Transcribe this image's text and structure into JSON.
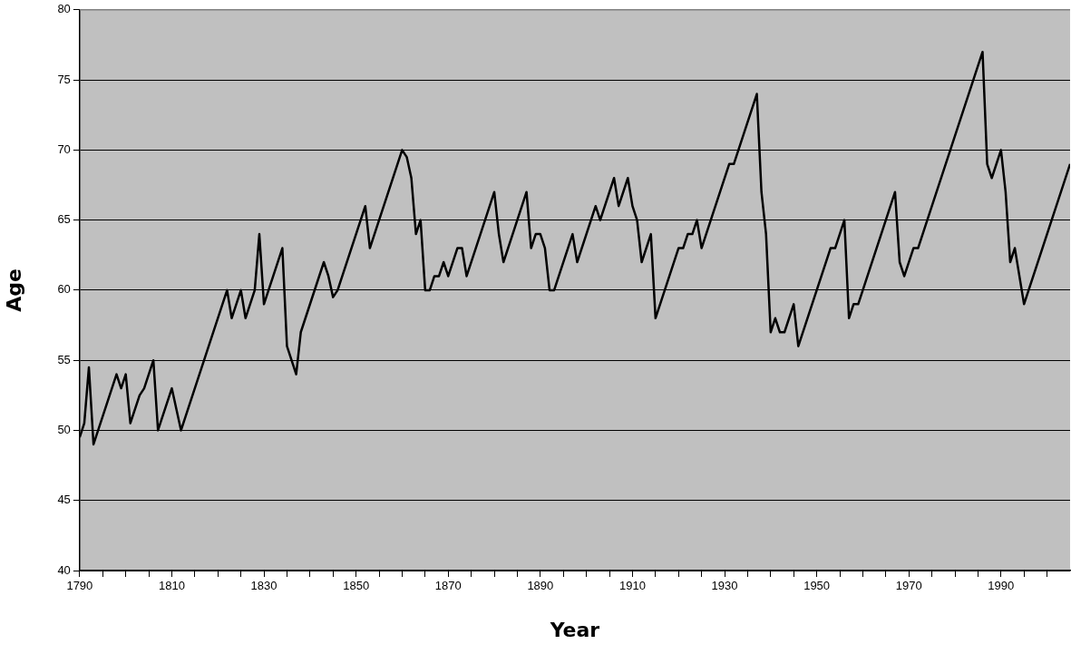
{
  "chart_data": {
    "type": "line",
    "xlabel": "Year",
    "ylabel": "Age",
    "xlim": [
      1790,
      2005
    ],
    "ylim": [
      40,
      80
    ],
    "xticks": [
      1790,
      {
        "value": 1795,
        "label": null
      },
      {
        "value": 1800,
        "label": null
      },
      {
        "value": 1805,
        "label": null
      },
      1810,
      {
        "value": 1815,
        "label": null
      },
      {
        "value": 1820,
        "label": null
      },
      {
        "value": 1825,
        "label": null
      },
      1830,
      {
        "value": 1835,
        "label": null
      },
      {
        "value": 1840,
        "label": null
      },
      {
        "value": 1845,
        "label": null
      },
      1850,
      {
        "value": 1855,
        "label": null
      },
      {
        "value": 1860,
        "label": null
      },
      {
        "value": 1865,
        "label": null
      },
      1870,
      {
        "value": 1875,
        "label": null
      },
      {
        "value": 1880,
        "label": null
      },
      {
        "value": 1885,
        "label": null
      },
      1890,
      {
        "value": 1895,
        "label": null
      },
      {
        "value": 1900,
        "label": null
      },
      {
        "value": 1905,
        "label": null
      },
      1910,
      {
        "value": 1915,
        "label": null
      },
      {
        "value": 1920,
        "label": null
      },
      {
        "value": 1925,
        "label": null
      },
      1930,
      {
        "value": 1935,
        "label": null
      },
      {
        "value": 1940,
        "label": null
      },
      {
        "value": 1945,
        "label": null
      },
      1950,
      {
        "value": 1955,
        "label": null
      },
      {
        "value": 1960,
        "label": null
      },
      {
        "value": 1965,
        "label": null
      },
      1970,
      {
        "value": 1975,
        "label": null
      },
      {
        "value": 1980,
        "label": null
      },
      {
        "value": 1985,
        "label": null
      },
      1990,
      {
        "value": 1995,
        "label": null
      },
      {
        "value": 2000,
        "label": null
      }
    ],
    "yticks": [
      40,
      45,
      50,
      55,
      60,
      65,
      70,
      75,
      80
    ],
    "grid": "y",
    "legend": false,
    "marker": "none",
    "line_style": "solid",
    "series": [
      {
        "color": "#000000",
        "x": [
          1790,
          1791,
          1792,
          1793,
          1798,
          1799,
          1800,
          1801,
          1803,
          1804,
          1806,
          1807,
          1810,
          1812,
          1822,
          1823,
          1825,
          1826,
          1828,
          1829,
          1830,
          1834,
          1835,
          1837,
          1838,
          1843,
          1844,
          1845,
          1846,
          1852,
          1853,
          1860,
          1861,
          1862,
          1863,
          1864,
          1865,
          1866,
          1867,
          1868,
          1869,
          1870,
          1872,
          1873,
          1874,
          1880,
          1881,
          1882,
          1887,
          1888,
          1889,
          1890,
          1891,
          1892,
          1893,
          1897,
          1898,
          1902,
          1903,
          1906,
          1907,
          1909,
          1910,
          1911,
          1912,
          1914,
          1915,
          1920,
          1921,
          1922,
          1923,
          1924,
          1925,
          1931,
          1932,
          1937,
          1938,
          1939,
          1940,
          1941,
          1942,
          1943,
          1945,
          1946,
          1953,
          1954,
          1956,
          1957,
          1958,
          1959,
          1967,
          1968,
          1969,
          1971,
          1972,
          1986,
          1987,
          1988,
          1990,
          1991,
          1992,
          1993,
          1995,
          2005
        ],
        "values": [
          49.5,
          50.5,
          54.5,
          49,
          54,
          53,
          54,
          50.5,
          52.5,
          53,
          55,
          50,
          53,
          50,
          60,
          58,
          60,
          58,
          60,
          64,
          59,
          63,
          56,
          54,
          57,
          62,
          61,
          59.5,
          60,
          66,
          63,
          70,
          69.5,
          68,
          64,
          65,
          60,
          60,
          61,
          61,
          62,
          61,
          63,
          63,
          61,
          67,
          64,
          62,
          67,
          63,
          64,
          64,
          63,
          60,
          60,
          64,
          62,
          66,
          65,
          68,
          66,
          68,
          66,
          65,
          62,
          64,
          58,
          63,
          63,
          64,
          64,
          65,
          63,
          69,
          69,
          74,
          67,
          64,
          57,
          58,
          57,
          57,
          59,
          56,
          63,
          63,
          65,
          58,
          59,
          59,
          67,
          62,
          61,
          63,
          63,
          77,
          69,
          68,
          70,
          67,
          62,
          63,
          59,
          69
        ]
      }
    ]
  }
}
